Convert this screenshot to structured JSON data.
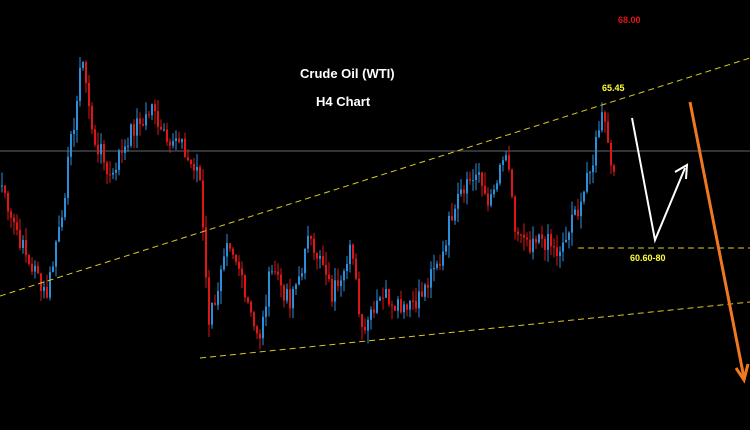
{
  "chart_data": {
    "type": "candlestick",
    "title": "Crude Oil (WTI)",
    "subtitle": "H4 Chart",
    "annotations": {
      "upper_target": "68.00",
      "recent_high": "65.45",
      "support_zone": "60.60-80"
    },
    "colors": {
      "background": "#000000",
      "bull": "#2a8fd8",
      "bear": "#e01515",
      "trendline": "#d8c828",
      "price_line": "#7f8a99",
      "bull_arrow": "#ffffff",
      "bear_arrow": "#f07822"
    },
    "ohlc_guide": [
      {
        "bar": 0,
        "close": 63.25
      },
      {
        "bar": 8,
        "close": 61.4
      },
      {
        "bar": 15,
        "close": 60.5
      },
      {
        "bar": 20,
        "close": 62.6
      },
      {
        "bar": 27,
        "close": 66.6
      },
      {
        "bar": 30,
        "close": 64.6
      },
      {
        "bar": 36,
        "close": 63.5
      },
      {
        "bar": 42,
        "close": 64.5
      },
      {
        "bar": 50,
        "close": 65.2
      },
      {
        "bar": 55,
        "close": 64.6
      },
      {
        "bar": 60,
        "close": 64.2
      },
      {
        "bar": 66,
        "close": 63.4
      },
      {
        "bar": 69,
        "close": 59.8
      },
      {
        "bar": 75,
        "close": 61.5
      },
      {
        "bar": 80,
        "close": 60.9
      },
      {
        "bar": 86,
        "close": 59.2
      },
      {
        "bar": 90,
        "close": 61.3
      },
      {
        "bar": 96,
        "close": 60.1
      },
      {
        "bar": 103,
        "close": 62.0
      },
      {
        "bar": 110,
        "close": 60.4
      },
      {
        "bar": 116,
        "close": 61.7
      },
      {
        "bar": 120,
        "close": 59.6
      },
      {
        "bar": 126,
        "close": 60.5
      },
      {
        "bar": 133,
        "close": 60.2
      },
      {
        "bar": 140,
        "close": 60.4
      },
      {
        "bar": 146,
        "close": 61.3
      },
      {
        "bar": 152,
        "close": 63.2
      },
      {
        "bar": 158,
        "close": 63.5
      },
      {
        "bar": 163,
        "close": 62.8
      },
      {
        "bar": 168,
        "close": 64.05
      },
      {
        "bar": 171,
        "close": 62.1
      },
      {
        "bar": 176,
        "close": 61.5
      },
      {
        "bar": 180,
        "close": 61.9
      },
      {
        "bar": 186,
        "close": 61.4
      },
      {
        "bar": 191,
        "close": 62.5
      },
      {
        "bar": 196,
        "close": 63.5
      },
      {
        "bar": 200,
        "close": 65.3
      },
      {
        "bar": 204,
        "close": 63.6
      }
    ]
  }
}
